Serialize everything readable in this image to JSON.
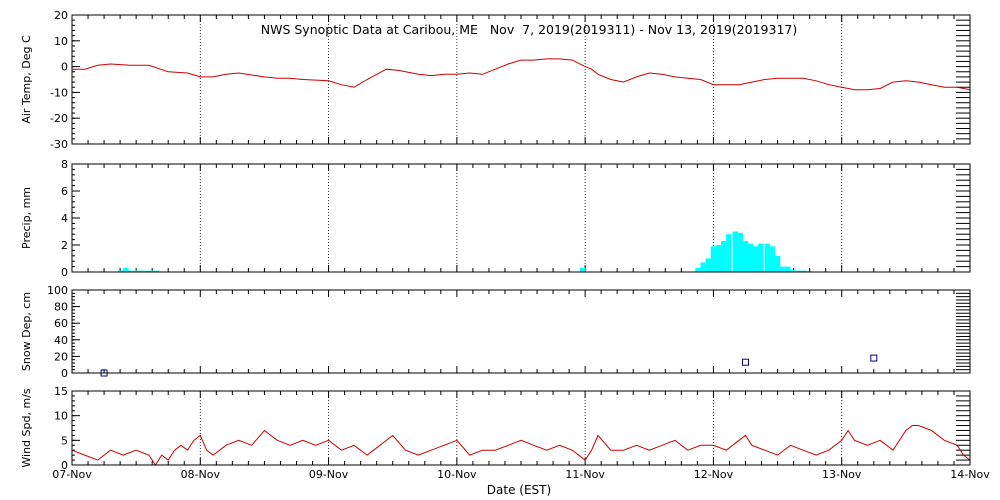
{
  "chart_data": {
    "type": "line",
    "title": "NWS Synoptic Data at Caribou, ME   Nov  7, 2019(2019311) - Nov 13, 2019(2019317)",
    "xlabel": "Date (EST)",
    "x_ticks": [
      "07-Nov",
      "08-Nov",
      "09-Nov",
      "10-Nov",
      "11-Nov",
      "12-Nov",
      "13-Nov",
      "14-Nov"
    ],
    "x_range_days": [
      0,
      7
    ],
    "colors": {
      "line": "#cc0000",
      "precip": "#00ffff",
      "snow": "#000080",
      "axis": "#000000"
    },
    "panels": [
      {
        "key": "airtemp",
        "type": "line",
        "ylabel": "Air Temp, Deg C",
        "ylim": [
          -30,
          20
        ],
        "y_ticks": [
          20,
          10,
          0,
          -10,
          -20,
          -30
        ],
        "grid": true,
        "series": [
          {
            "x": [
              0,
              0.1,
              0.2,
              0.3,
              0.45,
              0.6,
              0.75,
              0.9,
              1.0,
              1.1,
              1.2,
              1.3,
              1.5,
              1.6,
              1.7,
              1.8,
              2.0,
              2.1,
              2.2,
              2.3,
              2.45,
              2.55,
              2.7,
              2.8,
              2.9,
              3.0,
              3.1,
              3.2,
              3.3,
              3.4,
              3.5,
              3.6,
              3.7,
              3.8,
              3.9,
              4.0,
              4.05,
              4.1,
              4.2,
              4.3,
              4.4,
              4.5,
              4.6,
              4.7,
              4.8,
              4.9,
              5.0,
              5.1,
              5.2,
              5.3,
              5.4,
              5.5,
              5.6,
              5.7,
              5.8,
              5.9,
              6.0,
              6.1,
              6.2,
              6.3,
              6.4,
              6.5,
              6.6,
              6.7,
              6.8,
              6.9,
              7.0
            ],
            "y": [
              -1,
              -1,
              0.5,
              1,
              0.5,
              0.5,
              -2,
              -2.5,
              -4,
              -4,
              -3,
              -2.5,
              -4,
              -4.5,
              -4.5,
              -5,
              -5.5,
              -7,
              -8,
              -5,
              -1,
              -1.5,
              -3,
              -3.5,
              -3,
              -3,
              -2.5,
              -3,
              -1,
              1,
              2.5,
              2.5,
              3,
              3,
              2.5,
              0,
              -1,
              -3,
              -5,
              -6,
              -4,
              -2.5,
              -3,
              -4,
              -4.5,
              -5,
              -7,
              -7,
              -7,
              -6,
              -5,
              -4.5,
              -4.5,
              -4.5,
              -5.5,
              -7,
              -8,
              -9,
              -9,
              -8.5,
              -6,
              -5.5,
              -6,
              -7,
              -8,
              -8,
              -9
            ]
          }
        ]
      },
      {
        "key": "precip",
        "type": "bar",
        "ylabel": "Precip, mm",
        "ylim": [
          0,
          8
        ],
        "y_ticks": [
          8,
          6,
          4,
          2,
          0
        ],
        "grid": true,
        "bar_width_days": 0.042,
        "series": [
          {
            "x": [
              0.38,
              0.42,
              0.46,
              0.5,
              0.54,
              0.58,
              0.62,
              0.66,
              3.98,
              4.88,
              4.92,
              4.96,
              5.0,
              5.04,
              5.08,
              5.12,
              5.17,
              5.21,
              5.25,
              5.29,
              5.33,
              5.37,
              5.42,
              5.46,
              5.5,
              5.54,
              5.58,
              5.62,
              5.67,
              5.71,
              5.75
            ],
            "values": [
              0.1,
              0.3,
              0.1,
              0.1,
              0.1,
              0.1,
              0.1,
              0.1,
              0.3,
              0.3,
              0.7,
              1.0,
              1.9,
              2.0,
              2.3,
              2.8,
              3.0,
              2.9,
              2.3,
              2.1,
              1.9,
              2.1,
              2.1,
              1.9,
              1.2,
              0.4,
              0.4,
              0.15,
              0.1,
              0.1,
              0.05
            ]
          }
        ]
      },
      {
        "key": "snow",
        "type": "scatter",
        "ylabel": "Snow Dep, cm",
        "ylim": [
          0,
          100
        ],
        "y_ticks": [
          100,
          80,
          60,
          40,
          20,
          0
        ],
        "grid": false,
        "series": [
          {
            "x": [
              0.25,
              5.25,
              6.25
            ],
            "y": [
              0,
              13,
              18
            ]
          }
        ]
      },
      {
        "key": "wind",
        "type": "line",
        "ylabel": "Wind Spd, m/s",
        "ylim": [
          0,
          15
        ],
        "y_ticks": [
          15,
          10,
          5,
          0
        ],
        "grid": true,
        "series": [
          {
            "x": [
              0,
              0.1,
              0.2,
              0.3,
              0.4,
              0.5,
              0.6,
              0.65,
              0.7,
              0.75,
              0.8,
              0.85,
              0.9,
              0.95,
              1.0,
              1.05,
              1.1,
              1.2,
              1.3,
              1.4,
              1.5,
              1.6,
              1.7,
              1.8,
              1.9,
              2.0,
              2.1,
              2.2,
              2.3,
              2.4,
              2.5,
              2.6,
              2.7,
              2.8,
              2.9,
              3.0,
              3.1,
              3.2,
              3.3,
              3.4,
              3.5,
              3.6,
              3.7,
              3.8,
              3.9,
              4.0,
              4.05,
              4.1,
              4.2,
              4.3,
              4.4,
              4.5,
              4.6,
              4.7,
              4.8,
              4.9,
              5.0,
              5.1,
              5.2,
              5.25,
              5.3,
              5.4,
              5.5,
              5.6,
              5.7,
              5.8,
              5.9,
              6.0,
              6.05,
              6.1,
              6.2,
              6.3,
              6.4,
              6.5,
              6.55,
              6.6,
              6.7,
              6.8,
              6.9,
              6.95,
              7.0
            ],
            "y": [
              3,
              2,
              1,
              3,
              2,
              3,
              2,
              0,
              2,
              1,
              3,
              4,
              3,
              5,
              6,
              3,
              2,
              4,
              5,
              4,
              7,
              5,
              4,
              5,
              4,
              5,
              3,
              4,
              2,
              4,
              6,
              3,
              2,
              3,
              4,
              5,
              2,
              3,
              3,
              4,
              5,
              4,
              3,
              4,
              3,
              1,
              3,
              6,
              3,
              3,
              4,
              3,
              4,
              5,
              3,
              4,
              4,
              3,
              5,
              6,
              4,
              3,
              2,
              4,
              3,
              2,
              3,
              5,
              7,
              5,
              4,
              5,
              3,
              7,
              8,
              8,
              7,
              5,
              4,
              2,
              1
            ]
          }
        ]
      }
    ]
  }
}
